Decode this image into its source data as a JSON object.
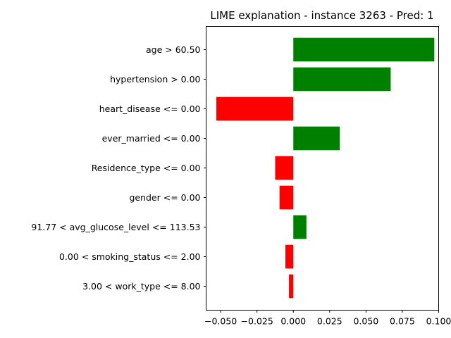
{
  "chart_data": {
    "type": "bar",
    "orientation": "horizontal",
    "title": "LIME explanation - instance 3263 - Pred: 1",
    "xlabel": "",
    "ylabel": "",
    "xlim": [
      -0.06,
      0.1
    ],
    "xticks": [
      -0.05,
      -0.025,
      0.0,
      0.025,
      0.05,
      0.075,
      0.1
    ],
    "xtick_labels": [
      "−0.050",
      "−0.025",
      "0.000",
      "0.025",
      "0.050",
      "0.075",
      "0.100"
    ],
    "grid": false,
    "legend": "none",
    "categories": [
      "age > 60.50",
      "hypertension > 0.00",
      "heart_disease <= 0.00",
      "ever_married <= 0.00",
      "Residence_type <= 0.00",
      "gender <= 0.00",
      "91.77 < avg_glucose_level <= 113.53",
      "0.00 < smoking_status <= 2.00",
      "3.00 < work_type <= 8.00"
    ],
    "values": [
      0.097,
      0.067,
      -0.053,
      0.032,
      -0.0125,
      -0.0095,
      0.009,
      -0.0055,
      -0.003
    ],
    "colors": {
      "positive": "#008000",
      "negative": "#ff0000"
    }
  }
}
